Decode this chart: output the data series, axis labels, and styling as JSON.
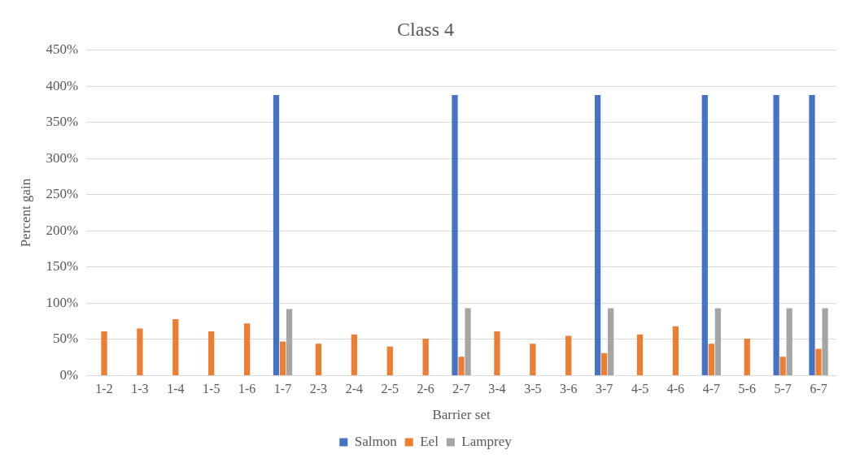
{
  "chart_data": {
    "type": "bar",
    "title": "Class 4",
    "xlabel": "Barrier set",
    "ylabel": "Percent gain",
    "categories": [
      "1-2",
      "1-3",
      "1-4",
      "1-5",
      "1-6",
      "1-7",
      "2-3",
      "2-4",
      "2-5",
      "2-6",
      "2-7",
      "3-4",
      "3-5",
      "3-6",
      "3-7",
      "4-5",
      "4-6",
      "4-7",
      "5-6",
      "5-7",
      "6-7"
    ],
    "series": [
      {
        "name": "Salmon",
        "color": "#4472c4",
        "values": [
          null,
          null,
          null,
          null,
          null,
          388,
          null,
          null,
          null,
          null,
          388,
          null,
          null,
          null,
          388,
          null,
          null,
          388,
          null,
          388,
          388
        ]
      },
      {
        "name": "Eel",
        "color": "#ed7d31",
        "values": [
          61,
          65,
          78,
          61,
          72,
          47,
          44,
          57,
          40,
          51,
          26,
          61,
          44,
          55,
          31,
          57,
          68,
          44,
          51,
          26,
          37
        ]
      },
      {
        "name": "Lamprey",
        "color": "#a5a5a5",
        "values": [
          null,
          null,
          null,
          null,
          null,
          92,
          null,
          null,
          null,
          null,
          93,
          null,
          null,
          null,
          93,
          null,
          null,
          93,
          null,
          93,
          93
        ]
      }
    ],
    "ylim": [
      0,
      450
    ],
    "yticks": [
      {
        "value": 0,
        "label": "0%"
      },
      {
        "value": 50,
        "label": "50%"
      },
      {
        "value": 100,
        "label": "100%"
      },
      {
        "value": 150,
        "label": "150%"
      },
      {
        "value": 200,
        "label": "200%"
      },
      {
        "value": 250,
        "label": "250%"
      },
      {
        "value": 300,
        "label": "300%"
      },
      {
        "value": 350,
        "label": "350%"
      },
      {
        "value": 400,
        "label": "400%"
      },
      {
        "value": 450,
        "label": "450%"
      }
    ],
    "grid": "y",
    "legend": "bottom"
  }
}
